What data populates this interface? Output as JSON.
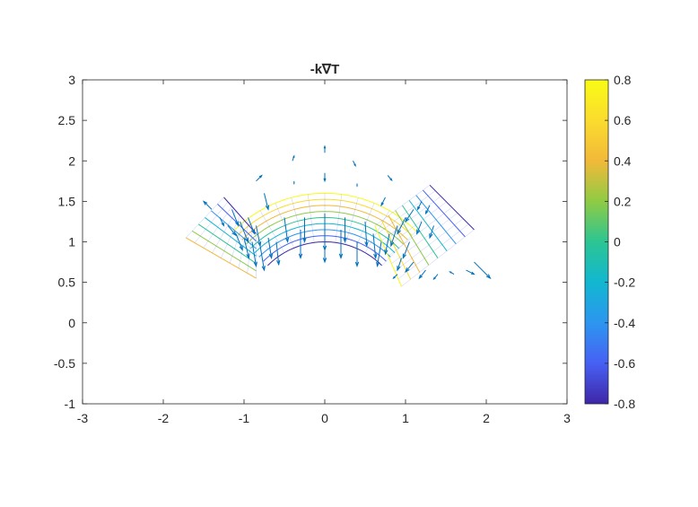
{
  "chart_data": {
    "type": "contour+quiver",
    "title": "-k∇T",
    "xlabel": "",
    "ylabel": "",
    "xlim": [
      -3,
      3
    ],
    "ylim": [
      -1,
      3
    ],
    "x_ticks": [
      "-3",
      "-2",
      "-1",
      "0",
      "1",
      "2",
      "3"
    ],
    "y_ticks": [
      "-1",
      "-0.5",
      "0",
      "0.5",
      "1",
      "1.5",
      "2",
      "2.5",
      "3"
    ],
    "grid": false,
    "colorbar": {
      "position": "right",
      "range": [
        -0.8,
        0.8
      ],
      "ticks": [
        "-0.8",
        "-0.6",
        "-0.4",
        "-0.2",
        "0",
        "0.2",
        "0.4",
        "0.6",
        "0.8"
      ],
      "colormap": [
        "#3e26a8",
        "#4760f4",
        "#2c96f0",
        "#12b7d0",
        "#2cc593",
        "#8fcb44",
        "#f2b939",
        "#fbdc2e",
        "#f9fb15"
      ]
    },
    "contour_regions": [
      {
        "name": "center-arc",
        "center": [
          0,
          0
        ],
        "r_inner": 1.0,
        "r_outer": 1.6,
        "angle_range_deg": [
          45,
          135
        ],
        "levels": [
          -0.8,
          -0.6,
          -0.4,
          -0.2,
          0,
          0.2,
          0.4,
          0.6,
          0.8
        ]
      },
      {
        "name": "left-block",
        "corners": [
          [
            -1.72,
            1.05
          ],
          [
            -1.25,
            1.55
          ],
          [
            -0.85,
            1.1
          ],
          [
            -0.85,
            0.55
          ]
        ],
        "levels": [
          -0.8,
          -0.6,
          -0.4,
          -0.2,
          0,
          0.2,
          0.4
        ]
      },
      {
        "name": "right-block",
        "corners": [
          [
            0.62,
            1.2
          ],
          [
            1.3,
            1.7
          ],
          [
            1.85,
            1.15
          ],
          [
            0.95,
            0.45
          ]
        ],
        "levels": [
          -0.8,
          -0.6,
          -0.4,
          -0.2,
          0,
          0.2,
          0.4,
          0.6,
          0.8
        ]
      }
    ],
    "quiver": {
      "color": "#0072bd",
      "vectors": [
        [
          0.0,
          2.1,
          0.0,
          0.08
        ],
        [
          -0.4,
          2.0,
          0.02,
          0.06
        ],
        [
          0.35,
          2.0,
          0.03,
          -0.06
        ],
        [
          0.0,
          1.85,
          0.0,
          -0.1
        ],
        [
          -0.38,
          1.75,
          0.0,
          -0.03
        ],
        [
          0.4,
          1.72,
          0.0,
          -0.03
        ],
        [
          -0.85,
          1.75,
          0.07,
          0.07
        ],
        [
          -0.75,
          1.6,
          0.05,
          -0.2
        ],
        [
          0.78,
          1.82,
          0.05,
          -0.06
        ],
        [
          0.75,
          1.55,
          -0.05,
          -0.1
        ],
        [
          -1.4,
          1.4,
          -0.1,
          0.1
        ],
        [
          -1.3,
          1.3,
          0.05,
          -0.1
        ],
        [
          -1.2,
          1.2,
          0.1,
          -0.12
        ],
        [
          -1.1,
          1.1,
          0.08,
          -0.2
        ],
        [
          -1.0,
          1.05,
          0.06,
          -0.25
        ],
        [
          -0.9,
          1.0,
          0.05,
          -0.3
        ],
        [
          -0.8,
          0.95,
          0.05,
          -0.3
        ],
        [
          -0.7,
          1.05,
          0.04,
          -0.25
        ],
        [
          -0.6,
          1.0,
          0.03,
          -0.28
        ],
        [
          -1.15,
          1.4,
          0.08,
          -0.2
        ],
        [
          -1.05,
          1.25,
          0.1,
          -0.25
        ],
        [
          -0.95,
          1.3,
          0.08,
          -0.2
        ],
        [
          -0.85,
          1.2,
          0.05,
          -0.25
        ],
        [
          -0.5,
          1.3,
          0.04,
          -0.3
        ],
        [
          -0.3,
          1.15,
          0.0,
          -0.35
        ],
        [
          -0.25,
          1.3,
          0.0,
          -0.3
        ],
        [
          0.0,
          1.35,
          0.0,
          -0.45
        ],
        [
          0.0,
          1.1,
          0.0,
          -0.35
        ],
        [
          0.2,
          1.15,
          0.0,
          -0.35
        ],
        [
          0.25,
          1.3,
          0.0,
          -0.3
        ],
        [
          0.4,
          1.0,
          0.0,
          -0.3
        ],
        [
          0.5,
          1.25,
          0.02,
          -0.3
        ],
        [
          0.6,
          1.1,
          0.03,
          -0.3
        ],
        [
          0.7,
          1.0,
          -0.05,
          -0.3
        ],
        [
          0.8,
          1.1,
          -0.05,
          -0.25
        ],
        [
          0.9,
          1.2,
          -0.08,
          -0.25
        ],
        [
          1.0,
          1.3,
          -0.1,
          -0.2
        ],
        [
          1.1,
          1.4,
          -0.1,
          -0.15
        ],
        [
          1.2,
          1.5,
          -0.05,
          -0.1
        ],
        [
          1.3,
          1.45,
          -0.05,
          -0.1
        ],
        [
          1.35,
          1.2,
          -0.05,
          -0.15
        ],
        [
          1.2,
          1.25,
          -0.06,
          -0.15
        ],
        [
          1.05,
          1.0,
          -0.08,
          -0.2
        ],
        [
          0.95,
          0.8,
          -0.05,
          -0.15
        ],
        [
          1.1,
          0.75,
          -0.1,
          -0.12
        ],
        [
          1.25,
          0.65,
          -0.08,
          -0.1
        ],
        [
          1.4,
          0.6,
          -0.05,
          -0.06
        ],
        [
          1.6,
          0.6,
          -0.05,
          0.03
        ],
        [
          0.9,
          0.6,
          -0.05,
          -0.05
        ],
        [
          1.85,
          0.75,
          0.2,
          -0.2
        ],
        [
          1.75,
          0.65,
          0.1,
          -0.05
        ]
      ]
    }
  }
}
